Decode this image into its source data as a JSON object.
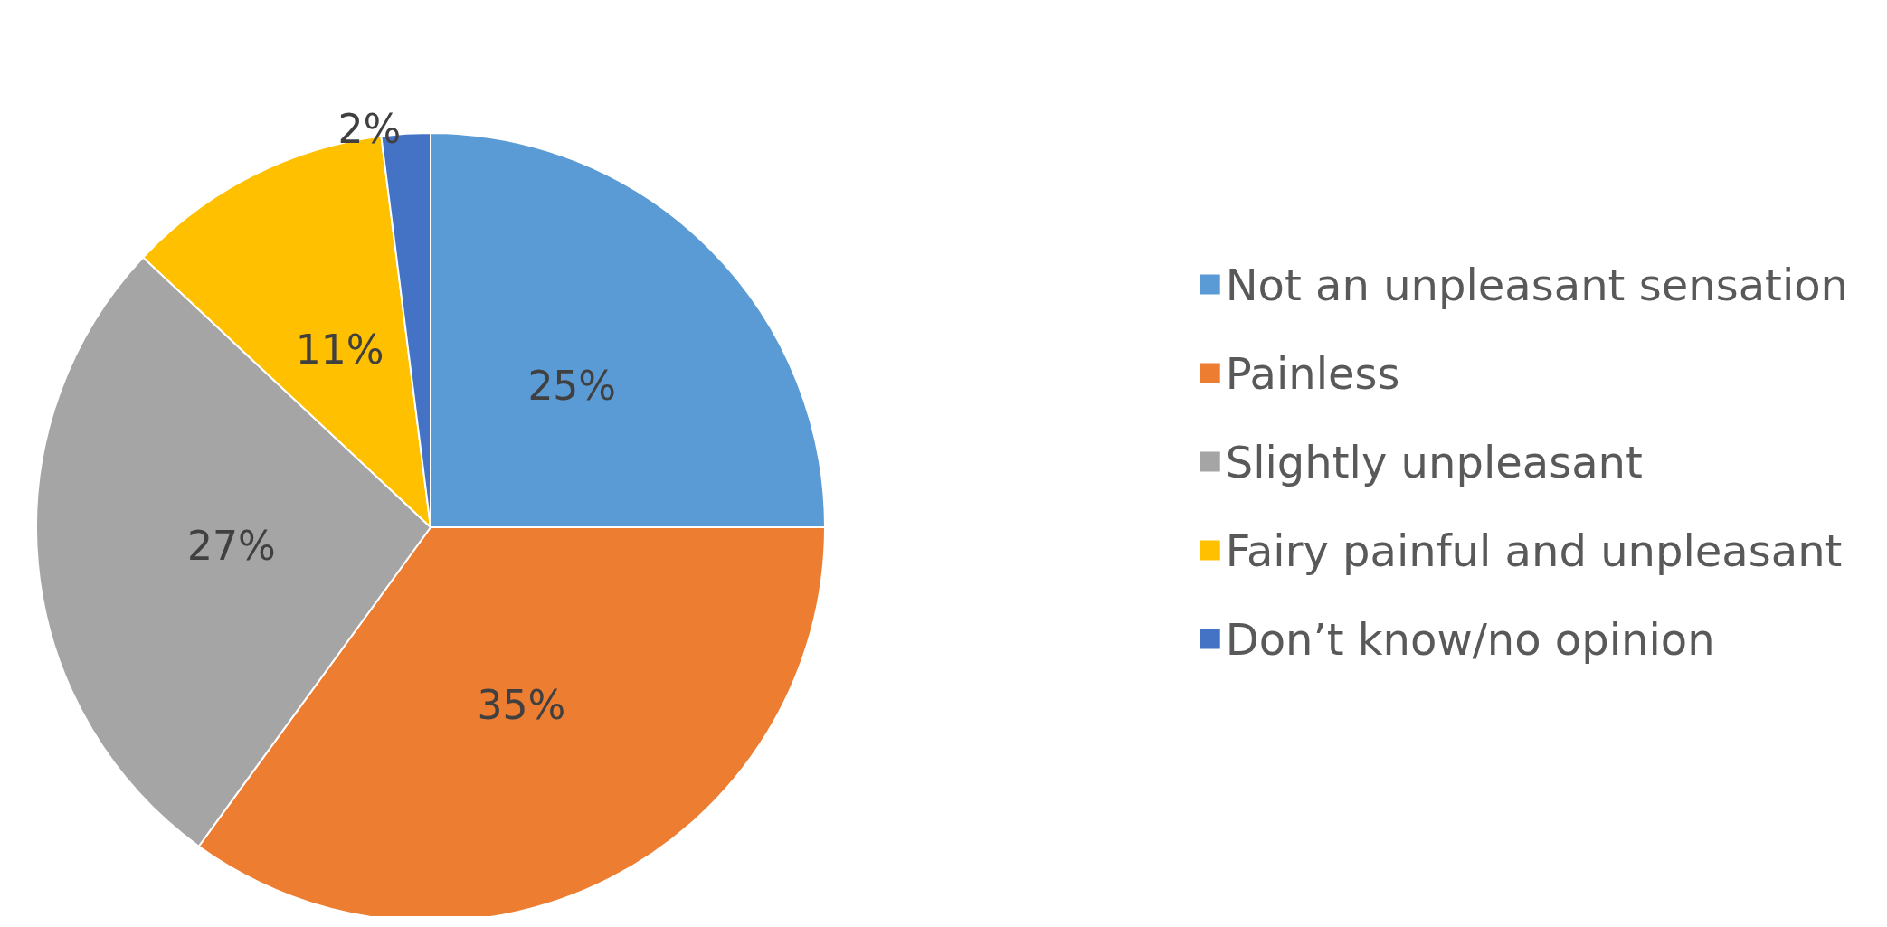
{
  "chart_data": {
    "type": "pie",
    "categories": [
      "Not an unpleasant sensation",
      "Painless",
      "Slightly unpleasant",
      "Fairy painful and unpleasant",
      "Don’t know/no opinion"
    ],
    "values": [
      25,
      35,
      27,
      11,
      2
    ],
    "value_labels": [
      "25%",
      "35%",
      "27%",
      "11%",
      "2%"
    ],
    "colors": [
      "#5b9bd5",
      "#ed7d31",
      "#a5a5a5",
      "#ffc000",
      "#4472c4"
    ],
    "legend": "right"
  }
}
